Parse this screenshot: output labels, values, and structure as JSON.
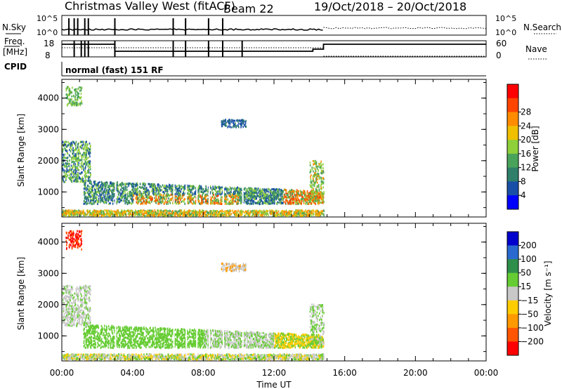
{
  "header": {
    "title": "Christmas Valley West (fitACF)",
    "beam": "Beam 22",
    "dates": "19/Oct/2018 – 20/Oct/2018"
  },
  "panels": {
    "nsky_label": "N.Sky",
    "nsearch_label": "N.Search",
    "freq_label": "Freq.",
    "freq_unit": "[MHz]",
    "nave_label": "Nave",
    "cpid_label": "CPID",
    "cpid_value": "normal (fast) 151 RF",
    "nsky_ticks": [
      "10^5",
      "10^0"
    ],
    "nsearch_ticks": [
      "10^5",
      "10^0"
    ],
    "freq_ticks": [
      "18",
      "8"
    ],
    "nave_ticks": [
      "60",
      "0"
    ]
  },
  "colors": {
    "power": [
      "#0000ff",
      "#1a4fa8",
      "#2f7f6b",
      "#4aa35a",
      "#8fcf3a",
      "#f0c000",
      "#ff8c00",
      "#ff4400",
      "#ff0000"
    ],
    "velocity": [
      "#0000cc",
      "#2a6ad0",
      "#2e8f4a",
      "#66cc33",
      "#c8c8c8",
      "#ffcc00",
      "#ff9900",
      "#ff5500",
      "#ff0000"
    ]
  },
  "chart_data": [
    {
      "type": "heatmap",
      "title": "Power",
      "xlabel": "",
      "ylabel": "Slant Range [km]",
      "x_ticks": [
        "00:00",
        "04:00",
        "08:00",
        "12:00",
        "16:00",
        "20:00",
        "00:00"
      ],
      "y_ticks": [
        "1000",
        "2000",
        "3000",
        "4000"
      ],
      "ylim": [
        200,
        4600
      ],
      "colorbar_label": "Power [dB]",
      "colorbar_ticks": [
        "4",
        "8",
        "12",
        "16",
        "20",
        "24",
        "28"
      ],
      "data_end_hour": 14.8
    },
    {
      "type": "heatmap",
      "title": "Velocity",
      "xlabel": "Time UT",
      "ylabel": "Slant Range [km]",
      "x_ticks": [
        "00:00",
        "04:00",
        "08:00",
        "12:00",
        "16:00",
        "20:00",
        "00:00"
      ],
      "y_ticks": [
        "1000",
        "2000",
        "3000",
        "4000"
      ],
      "ylim": [
        200,
        4600
      ],
      "colorbar_label": "Velocity [m s⁻¹]",
      "colorbar_ticks": [
        "200",
        "100",
        "50",
        "15",
        "−15",
        "−50",
        "−100",
        "−200"
      ],
      "data_end_hour": 14.8
    }
  ]
}
